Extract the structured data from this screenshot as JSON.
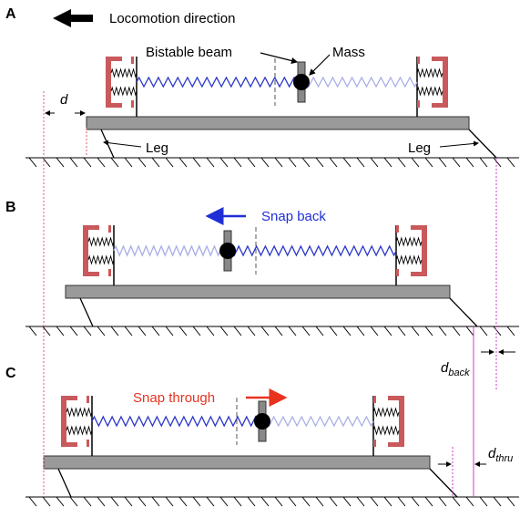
{
  "panels": [
    {
      "label": "A",
      "direction": "Locomotion direction",
      "beam": "Bistable beam",
      "mass": "Mass",
      "offset": "d",
      "leg_left": "Leg",
      "leg_right": "Leg"
    },
    {
      "label": "B",
      "action": "Snap back",
      "offset": {
        "base": "d",
        "sub": "back"
      }
    },
    {
      "label": "C",
      "action": "Snap through",
      "offset": {
        "base": "d",
        "sub": "thru"
      }
    }
  ]
}
